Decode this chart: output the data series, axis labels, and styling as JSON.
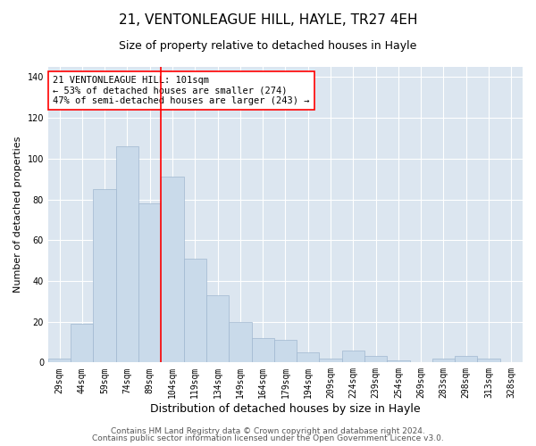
{
  "title": "21, VENTONLEAGUE HILL, HAYLE, TR27 4EH",
  "subtitle": "Size of property relative to detached houses in Hayle",
  "xlabel": "Distribution of detached houses by size in Hayle",
  "ylabel": "Number of detached properties",
  "bar_labels": [
    "29sqm",
    "44sqm",
    "59sqm",
    "74sqm",
    "89sqm",
    "104sqm",
    "119sqm",
    "134sqm",
    "149sqm",
    "164sqm",
    "179sqm",
    "194sqm",
    "209sqm",
    "224sqm",
    "239sqm",
    "254sqm",
    "269sqm",
    "283sqm",
    "298sqm",
    "313sqm",
    "328sqm"
  ],
  "bar_values": [
    2,
    19,
    85,
    106,
    78,
    91,
    51,
    33,
    20,
    12,
    11,
    5,
    2,
    6,
    3,
    1,
    0,
    2,
    3,
    2,
    0
  ],
  "bar_color": "#c9daea",
  "bar_edge_color": "#a0b8d0",
  "vline_bar_index": 5,
  "vline_color": "red",
  "annotation_text": "21 VENTONLEAGUE HILL: 101sqm\n← 53% of detached houses are smaller (274)\n47% of semi-detached houses are larger (243) →",
  "annotation_box_color": "white",
  "annotation_box_edge_color": "red",
  "ylim": [
    0,
    145
  ],
  "yticks": [
    0,
    20,
    40,
    60,
    80,
    100,
    120,
    140
  ],
  "background_color": "#dce6f0",
  "grid_color": "white",
  "footer1": "Contains HM Land Registry data © Crown copyright and database right 2024.",
  "footer2": "Contains public sector information licensed under the Open Government Licence v3.0.",
  "title_fontsize": 11,
  "subtitle_fontsize": 9,
  "xlabel_fontsize": 9,
  "ylabel_fontsize": 8,
  "tick_fontsize": 7,
  "annotation_fontsize": 7.5,
  "footer_fontsize": 6.5
}
